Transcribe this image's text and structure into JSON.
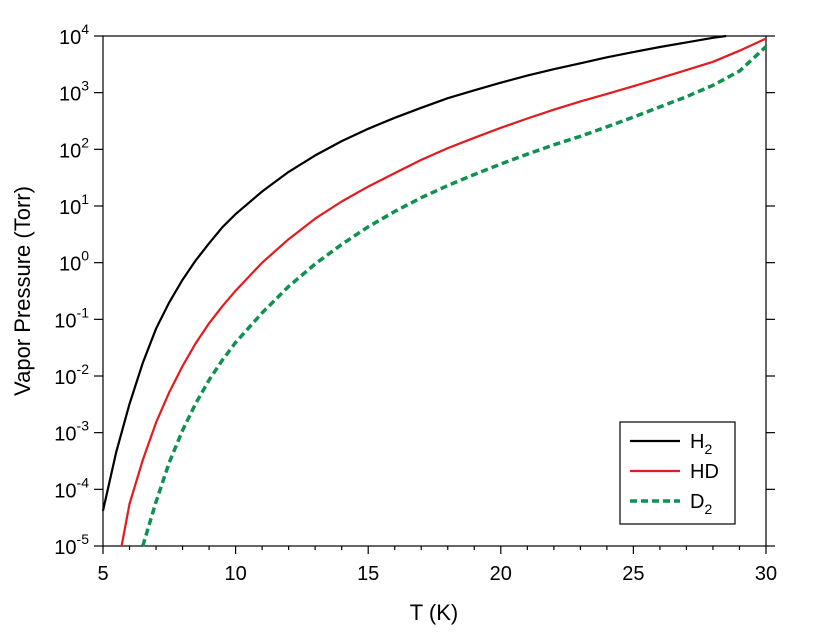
{
  "chart_data": {
    "type": "line",
    "xlabel": "T (K)",
    "ylabel": "Vapor Pressure (Torr)",
    "xlim": [
      5,
      30
    ],
    "ylim": [
      1e-05,
      10000.0
    ],
    "yscale": "log",
    "x_ticks": [
      5,
      10,
      15,
      20,
      25,
      30
    ],
    "y_ticks": [
      {
        "value": 1e-05,
        "base": "10",
        "exp": "-5"
      },
      {
        "value": 0.0001,
        "base": "10",
        "exp": "-4"
      },
      {
        "value": 0.001,
        "base": "10",
        "exp": "-3"
      },
      {
        "value": 0.01,
        "base": "10",
        "exp": "-2"
      },
      {
        "value": 0.1,
        "base": "10",
        "exp": "-1"
      },
      {
        "value": 1.0,
        "base": "10",
        "exp": "0"
      },
      {
        "value": 10.0,
        "base": "10",
        "exp": "1"
      },
      {
        "value": 100.0,
        "base": "10",
        "exp": "2"
      },
      {
        "value": 1000.0,
        "base": "10",
        "exp": "3"
      },
      {
        "value": 10000.0,
        "base": "10",
        "exp": "4"
      }
    ],
    "grid": false,
    "legend_position": "bottom-right",
    "series": [
      {
        "name": "H2",
        "label_main": "H",
        "label_sub": "2",
        "color": "#000000",
        "dash": "solid",
        "points": [
          [
            5.0,
            4.2e-05
          ],
          [
            5.5,
            0.00046
          ],
          [
            6,
            0.0032
          ],
          [
            6.5,
            0.017
          ],
          [
            7,
            0.068
          ],
          [
            7.5,
            0.2
          ],
          [
            8,
            0.5
          ],
          [
            8.5,
            1.1
          ],
          [
            9,
            2.2
          ],
          [
            9.5,
            4.2
          ],
          [
            10,
            7.2
          ],
          [
            11,
            18
          ],
          [
            12,
            40
          ],
          [
            13,
            78
          ],
          [
            14,
            140
          ],
          [
            15,
            230
          ],
          [
            16,
            360
          ],
          [
            17,
            540
          ],
          [
            18,
            800
          ],
          [
            19,
            1100
          ],
          [
            20,
            1500
          ],
          [
            21,
            2000
          ],
          [
            22,
            2600
          ],
          [
            23,
            3300
          ],
          [
            24,
            4200
          ],
          [
            25,
            5200
          ],
          [
            26,
            6400
          ],
          [
            27,
            7700
          ],
          [
            28,
            9300
          ],
          [
            28.5,
            10000
          ]
        ]
      },
      {
        "name": "HD",
        "label_main": "HD",
        "label_sub": "",
        "color": "#e41a1c",
        "dash": "solid",
        "points": [
          [
            5.7,
            1e-05
          ],
          [
            6,
            5.5e-05
          ],
          [
            6.5,
            0.00033
          ],
          [
            7,
            0.0015
          ],
          [
            7.5,
            0.0052
          ],
          [
            8,
            0.015
          ],
          [
            8.5,
            0.038
          ],
          [
            9,
            0.085
          ],
          [
            9.5,
            0.17
          ],
          [
            10,
            0.32
          ],
          [
            11,
            1.0
          ],
          [
            12,
            2.6
          ],
          [
            13,
            6.0
          ],
          [
            14,
            12
          ],
          [
            15,
            22
          ],
          [
            16,
            38
          ],
          [
            17,
            65
          ],
          [
            18,
            105
          ],
          [
            19,
            160
          ],
          [
            20,
            240
          ],
          [
            21,
            350
          ],
          [
            22,
            500
          ],
          [
            23,
            700
          ],
          [
            24,
            950
          ],
          [
            25,
            1300
          ],
          [
            26,
            1800
          ],
          [
            27,
            2500
          ],
          [
            28,
            3500
          ],
          [
            29,
            5500
          ],
          [
            30,
            9000
          ]
        ]
      },
      {
        "name": "D2",
        "label_main": "D",
        "label_sub": "2",
        "color": "#0f9150",
        "dash": "dashed",
        "points": [
          [
            6.5,
            1e-05
          ],
          [
            7,
            6e-05
          ],
          [
            7.5,
            0.0003
          ],
          [
            8,
            0.0011
          ],
          [
            8.5,
            0.0033
          ],
          [
            9,
            0.0085
          ],
          [
            9.5,
            0.019
          ],
          [
            10,
            0.039
          ],
          [
            11,
            0.13
          ],
          [
            12,
            0.38
          ],
          [
            13,
            0.95
          ],
          [
            14,
            2.1
          ],
          [
            15,
            4.3
          ],
          [
            16,
            8.0
          ],
          [
            17,
            14
          ],
          [
            18,
            23
          ],
          [
            19,
            36
          ],
          [
            20,
            55
          ],
          [
            21,
            82
          ],
          [
            22,
            120
          ],
          [
            23,
            170
          ],
          [
            24,
            250
          ],
          [
            25,
            370
          ],
          [
            26,
            560
          ],
          [
            27,
            850
          ],
          [
            28,
            1350
          ],
          [
            29,
            2400
          ],
          [
            30,
            6500
          ]
        ]
      }
    ]
  }
}
